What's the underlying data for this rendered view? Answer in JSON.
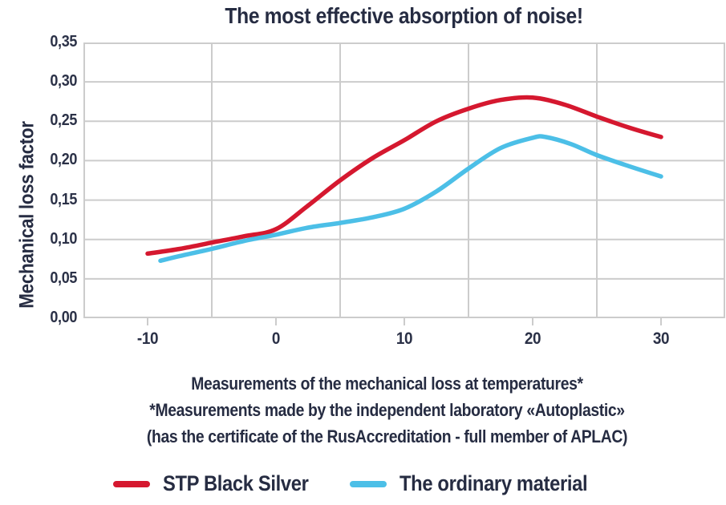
{
  "title": "The most effective absorption of noise!",
  "y_axis": {
    "label": "Mechanical loss factor",
    "tick_labels": [
      "0,35",
      "0,30",
      "0,25",
      "0,20",
      "0,15",
      "0,10",
      "0,05",
      "0,00"
    ]
  },
  "x_axis": {
    "tick_labels": [
      "-10",
      "0",
      "10",
      "20",
      "30"
    ]
  },
  "footer": {
    "line1": "Measurements of the mechanical loss at temperatures*",
    "line2": "*Measurements made by the independent laboratory «Autoplastic»",
    "line3": "(has the certificate of the RusAccreditation - full member of APLAC)"
  },
  "legend": [
    {
      "label": "STP Black Silver",
      "color": "#d5182f"
    },
    {
      "label": "The ordinary material",
      "color": "#4cbfe7"
    }
  ],
  "colors": {
    "text": "#262c42",
    "grid": "#cccccc",
    "series_red": "#d5182f",
    "series_blue": "#4cbfe7",
    "background": "#ffffff"
  },
  "chart_data": {
    "type": "line",
    "title": "The most effective absorption of noise!",
    "xlabel": "",
    "ylabel": "Mechanical loss factor",
    "x_range": [
      -15,
      35
    ],
    "y_range": [
      0,
      0.35
    ],
    "x_ticks": [
      -10,
      0,
      10,
      20,
      30
    ],
    "x_gridlines": [
      -5,
      5,
      15,
      25
    ],
    "y_tick_step": 0.05,
    "grid": true,
    "legend_position": "bottom",
    "series": [
      {
        "name": "STP Black Silver",
        "color": "#d5182f",
        "points": [
          [
            -10,
            0.082
          ],
          [
            -7.5,
            0.088
          ],
          [
            -5,
            0.096
          ],
          [
            -2.5,
            0.104
          ],
          [
            0,
            0.113
          ],
          [
            2.5,
            0.143
          ],
          [
            5,
            0.175
          ],
          [
            7.5,
            0.203
          ],
          [
            10,
            0.226
          ],
          [
            12.5,
            0.25
          ],
          [
            15,
            0.266
          ],
          [
            17.5,
            0.277
          ],
          [
            20,
            0.28
          ],
          [
            22.5,
            0.271
          ],
          [
            25,
            0.256
          ],
          [
            27.5,
            0.242
          ],
          [
            30,
            0.23
          ]
        ]
      },
      {
        "name": "The ordinary material",
        "color": "#4cbfe7",
        "points": [
          [
            -9,
            0.073
          ],
          [
            -7.5,
            0.079
          ],
          [
            -5,
            0.088
          ],
          [
            -2.5,
            0.098
          ],
          [
            0,
            0.106
          ],
          [
            2.5,
            0.115
          ],
          [
            5,
            0.121
          ],
          [
            7.5,
            0.128
          ],
          [
            10,
            0.139
          ],
          [
            12.5,
            0.161
          ],
          [
            15,
            0.19
          ],
          [
            17.5,
            0.216
          ],
          [
            20,
            0.229
          ],
          [
            21,
            0.23
          ],
          [
            23,
            0.221
          ],
          [
            25,
            0.207
          ],
          [
            27.5,
            0.193
          ],
          [
            30,
            0.18
          ]
        ]
      }
    ]
  }
}
